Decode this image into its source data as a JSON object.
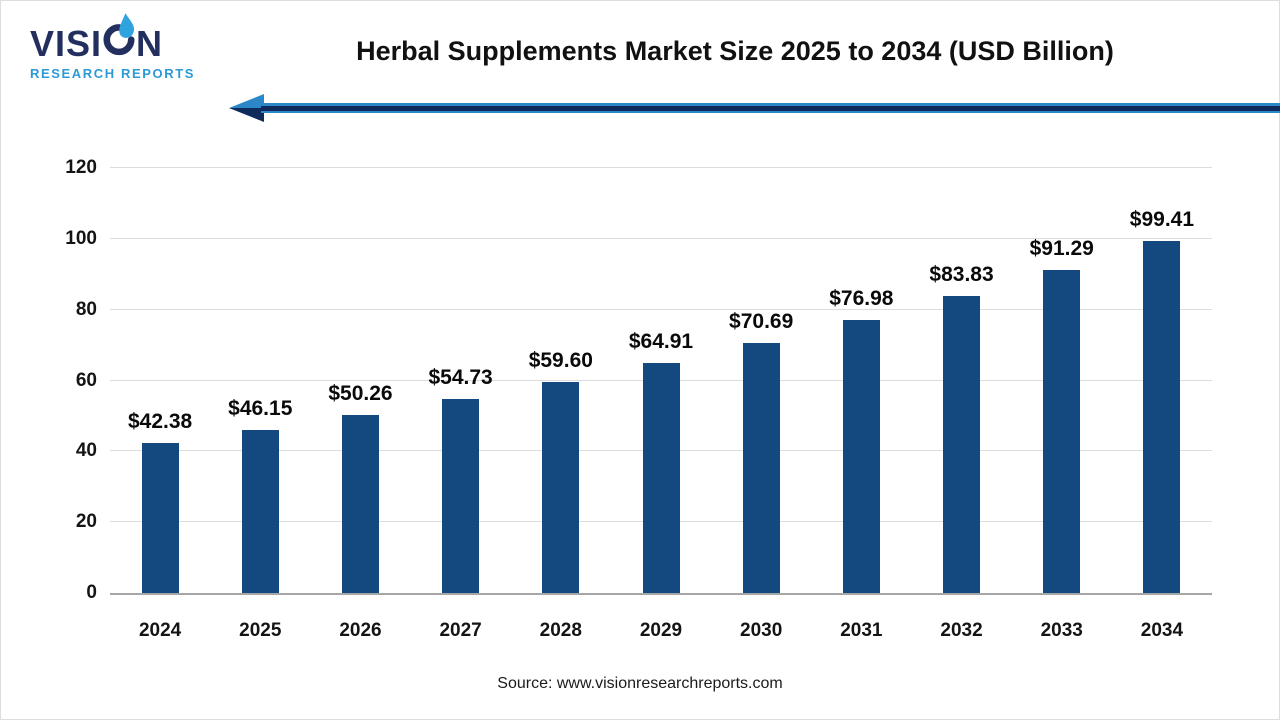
{
  "brand": {
    "name_pre": "VISI",
    "name_post": "N",
    "subtitle": "RESEARCH REPORTS"
  },
  "header": {
    "title": "Herbal Supplements Market Size 2025 to 2034 (USD Billion)"
  },
  "footer": {
    "source": "Source: www.visionresearchreports.com"
  },
  "colors": {
    "bar": "#14497F",
    "arrow_light_blue": "#2B87C8",
    "arrow_navy": "#0F2B5C",
    "logo_navy": "#232F5E",
    "logo_blue": "#2B9AD7",
    "gridline": "#DCDCDC",
    "axis_line": "#A6A6A6"
  },
  "chart_data": {
    "type": "bar",
    "title": "Herbal Supplements Market Size 2025 to 2034 (USD Billion)",
    "unit": "USD Billion",
    "categories": [
      "2024",
      "2025",
      "2026",
      "2027",
      "2028",
      "2029",
      "2030",
      "2031",
      "2032",
      "2033",
      "2034"
    ],
    "values": [
      42.38,
      46.15,
      50.26,
      54.73,
      59.6,
      64.91,
      70.69,
      76.98,
      83.83,
      91.29,
      99.41
    ],
    "value_labels": [
      "$42.38",
      "$46.15",
      "$50.26",
      "$54.73",
      "$59.60",
      "$64.91",
      "$70.69",
      "$76.98",
      "$83.83",
      "$91.29",
      "$99.41"
    ],
    "ylim": [
      0,
      120
    ],
    "yticks": [
      0,
      20,
      40,
      60,
      80,
      100,
      120
    ],
    "grid": true,
    "legend": false,
    "bar_color": "#14497F"
  }
}
